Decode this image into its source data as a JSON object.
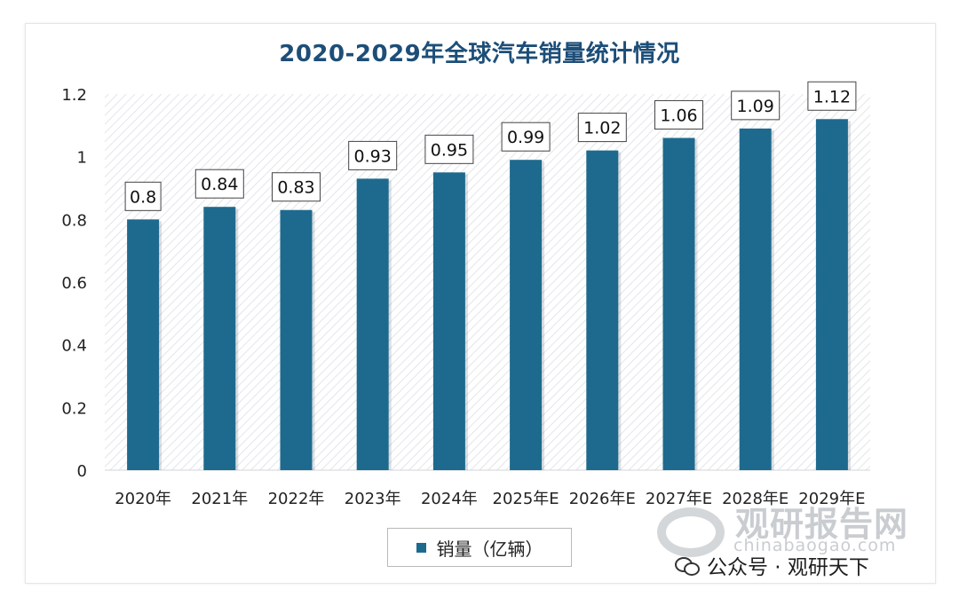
{
  "chart_data": {
    "type": "bar",
    "title": "2020-2029年全球汽车销量统计情况",
    "categories": [
      "2020年",
      "2021年",
      "2022年",
      "2023年",
      "2024年",
      "2025年E",
      "2026年E",
      "2027年E",
      "2028年E",
      "2029年E"
    ],
    "series": [
      {
        "name": "销量（亿辆）",
        "values": [
          0.8,
          0.84,
          0.83,
          0.93,
          0.95,
          0.99,
          1.02,
          1.06,
          1.09,
          1.12
        ],
        "labels": [
          "0.8",
          "0.84",
          "0.83",
          "0.93",
          "0.95",
          "0.99",
          "1.02",
          "1.06",
          "1.09",
          "1.12"
        ]
      }
    ],
    "ylim": [
      0,
      1.2
    ],
    "yticks": [
      0,
      0.2,
      0.4,
      0.6,
      0.8,
      1,
      1.2
    ],
    "ytick_labels": [
      "0",
      "0.2",
      "0.4",
      "0.6",
      "0.8",
      "1",
      "1.2"
    ],
    "grid": false,
    "legend_position": "bottom-center",
    "colors": {
      "bar": "#1e6a8e",
      "title": "#1d4e78"
    }
  },
  "watermark": {
    "center_text": "观研报告网",
    "center_sub": "chinabaogao.com",
    "corner_text": "观研报告网",
    "corner_sub": "chinabaogao.com"
  },
  "footer": {
    "wechat_text": "公众号 · 观研天下",
    "wechat_icon": "wechat-icon"
  }
}
